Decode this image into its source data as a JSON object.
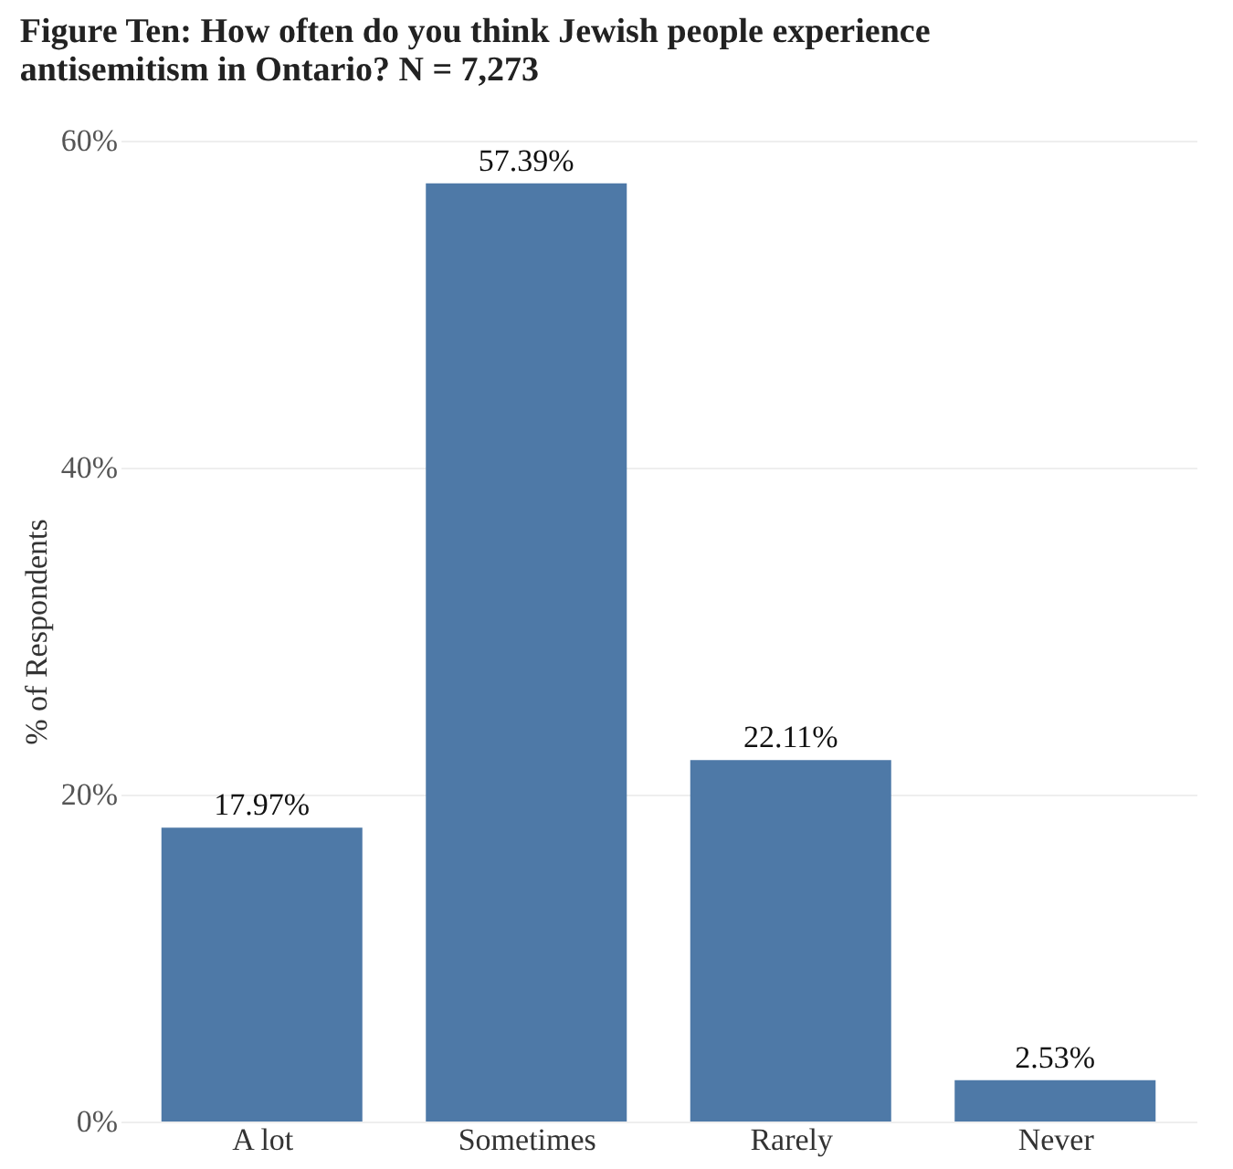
{
  "chart_data": {
    "type": "bar",
    "title": "Figure Ten: How often do you think Jewish people experience antisemitism in Ontario? N = 7,273",
    "categories": [
      "A lot",
      "Sometimes",
      "Rarely",
      "Never"
    ],
    "values": [
      17.97,
      57.39,
      22.11,
      2.53
    ],
    "color": "#4e79a7",
    "ylabel": "% of Respondents",
    "ylim": [
      0,
      60
    ],
    "yticks": [
      {
        "value": 0,
        "label": "0%"
      },
      {
        "value": 20,
        "label": "20%"
      },
      {
        "value": 40,
        "label": "40%"
      },
      {
        "value": 60,
        "label": "60%"
      }
    ],
    "grid": "y",
    "value_labels": [
      "17.97%",
      "57.39%",
      "22.11%",
      "2.53%"
    ]
  }
}
